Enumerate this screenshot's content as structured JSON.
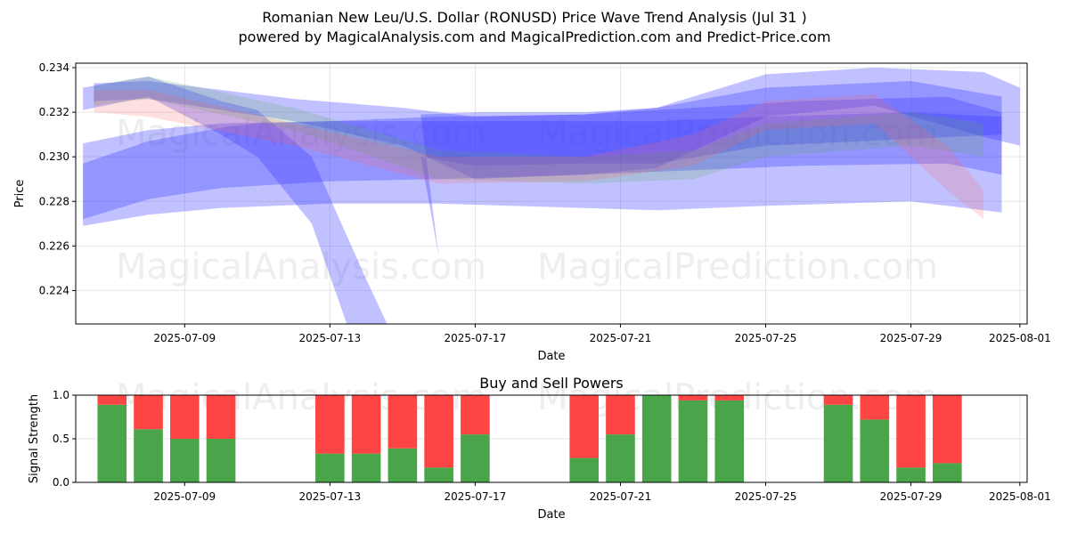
{
  "title_line1": "Romanian New Leu/U.S. Dollar (RONUSD) Price Wave Trend Analysis (Jul 31 )",
  "title_line2": "powered by MagicalAnalysis.com and MagicalPrediction.com and Predict-Price.com",
  "watermarks": [
    "MagicalAnalysis.com",
    "MagicalPrediction.com"
  ],
  "colors": {
    "blue_band": "#3333ff",
    "green_band": "#55aa55",
    "red_band": "#ff6666",
    "buy": "#4aa54a",
    "sell": "#ff4444"
  },
  "chart_data": [
    {
      "type": "area",
      "name": "price-wave-chart",
      "xlabel": "Date",
      "ylabel": "Price",
      "x_ticks": [
        "2025-07-09",
        "2025-07-13",
        "2025-07-17",
        "2025-07-21",
        "2025-07-25",
        "2025-07-29",
        "2025-08-01"
      ],
      "y_ticks": [
        0.224,
        0.226,
        0.228,
        0.23,
        0.232,
        0.234
      ],
      "xlim": [
        "2025-07-06",
        "2025-08-01"
      ],
      "ylim": [
        0.2225,
        0.2342
      ],
      "grid": true,
      "bands": [
        {
          "color": "blue",
          "opacity": 0.3,
          "points": [
            [
              "2025-07-06.2",
              0.2297,
              0.2272
            ],
            [
              "2025-07-08",
              0.2307,
              0.2281
            ],
            [
              "2025-07-10",
              0.2313,
              0.2286
            ],
            [
              "2025-07-11",
              0.2315,
              0.2287
            ],
            [
              "2025-07-13",
              0.2316,
              0.2289
            ],
            [
              "2025-07-16",
              0.2318,
              0.229
            ],
            [
              "2025-07-20",
              0.2319,
              0.2292
            ],
            [
              "2025-07-23",
              0.2322,
              0.2294
            ],
            [
              "2025-07-26",
              0.2325,
              0.2296
            ],
            [
              "2025-07-30",
              0.2327,
              0.2297
            ],
            [
              "2025-07-31.5",
              0.232,
              0.2292
            ]
          ]
        },
        {
          "color": "blue",
          "opacity": 0.3,
          "points": [
            [
              "2025-07-06.2",
              0.2306,
              0.2269
            ],
            [
              "2025-07-08",
              0.2312,
              0.2274
            ],
            [
              "2025-07-10",
              0.2315,
              0.2277
            ],
            [
              "2025-07-13",
              0.2316,
              0.2279
            ],
            [
              "2025-07-16",
              0.2316,
              0.2279
            ],
            [
              "2025-07-20",
              0.2316,
              0.2277
            ],
            [
              "2025-07-22",
              0.2316,
              0.2276
            ],
            [
              "2025-07-25",
              0.2318,
              0.2278
            ],
            [
              "2025-07-29",
              0.232,
              0.228
            ],
            [
              "2025-07-31.5",
              0.2318,
              0.2275
            ]
          ]
        },
        {
          "color": "blue",
          "opacity": 0.3,
          "points": [
            [
              "2025-07-06.2",
              0.2331,
              0.2321
            ],
            [
              "2025-07-08",
              0.2336,
              0.2327
            ],
            [
              "2025-07-10",
              0.2325,
              0.231
            ],
            [
              "2025-07-11",
              0.2321,
              0.23
            ],
            [
              "2025-07-12.5",
              0.23,
              0.227
            ],
            [
              "2025-07-14",
              0.2245,
              0.22
            ],
            [
              "2025-07-15.3",
              0.22,
              0.22
            ],
            [
              "2025-07-16",
              0.2255,
              0.2255
            ],
            [
              "2025-07-15.5",
              0.2319,
              0.23
            ],
            [
              "2025-07-17",
              0.232,
              0.2296
            ],
            [
              "2025-07-20",
              0.232,
              0.2297
            ],
            [
              "2025-07-22",
              0.2322,
              0.2297
            ],
            [
              "2025-07-25",
              0.2331,
              0.2305
            ],
            [
              "2025-07-29",
              0.2334,
              0.2308
            ],
            [
              "2025-07-31.5",
              0.2327,
              0.231
            ]
          ]
        },
        {
          "color": "blue",
          "opacity": 0.3,
          "points": [
            [
              "2025-07-06.5",
              0.2333,
              0.2325
            ],
            [
              "2025-07-08",
              0.2334,
              0.2326
            ],
            [
              "2025-07-12",
              0.2326,
              0.2316
            ],
            [
              "2025-07-15",
              0.2322,
              0.2305
            ],
            [
              "2025-07-17",
              0.2318,
              0.229
            ],
            [
              "2025-07-20",
              0.2319,
              0.2292
            ],
            [
              "2025-07-22",
              0.2322,
              0.2295
            ],
            [
              "2025-07-25",
              0.2337,
              0.2318
            ],
            [
              "2025-07-28",
              0.234,
              0.2323
            ],
            [
              "2025-07-31",
              0.2338,
              0.2309
            ],
            [
              "2025-08-01",
              0.2331,
              0.2305
            ]
          ]
        },
        {
          "color": "green",
          "opacity": 0.2,
          "points": [
            [
              "2025-07-06.5",
              0.2332,
              0.2323
            ],
            [
              "2025-07-08",
              0.2336,
              0.2326
            ],
            [
              "2025-07-12",
              0.2322,
              0.2312
            ],
            [
              "2025-07-16",
              0.2303,
              0.229
            ],
            [
              "2025-07-20",
              0.23,
              0.2288
            ],
            [
              "2025-07-23",
              0.2303,
              0.229
            ],
            [
              "2025-07-25",
              0.2315,
              0.23
            ],
            [
              "2025-07-29",
              0.232,
              0.2305
            ],
            [
              "2025-07-31",
              0.2315,
              0.23
            ]
          ]
        },
        {
          "color": "red",
          "opacity": 0.2,
          "points": [
            [
              "2025-07-06.5",
              0.233,
              0.232
            ],
            [
              "2025-07-08",
              0.233,
              0.2318
            ],
            [
              "2025-07-12",
              0.2315,
              0.2305
            ],
            [
              "2025-07-16",
              0.23,
              0.2288
            ],
            [
              "2025-07-20",
              0.23,
              0.2289
            ],
            [
              "2025-07-23",
              0.231,
              0.2296
            ],
            [
              "2025-07-25",
              0.2325,
              0.2312
            ],
            [
              "2025-07-28",
              0.2328,
              0.2315
            ],
            [
              "2025-07-30",
              0.2305,
              0.2285
            ],
            [
              "2025-07-31",
              0.2285,
              0.2272
            ]
          ]
        }
      ]
    },
    {
      "type": "bar",
      "name": "buy-sell-powers",
      "title": "Buy and Sell Powers",
      "xlabel": "Date",
      "ylabel": "Signal Strength",
      "x_ticks": [
        "2025-07-09",
        "2025-07-13",
        "2025-07-17",
        "2025-07-21",
        "2025-07-25",
        "2025-07-29",
        "2025-08-01"
      ],
      "y_ticks": [
        0.0,
        0.5,
        1.0
      ],
      "xlim": [
        "2025-07-06",
        "2025-08-01"
      ],
      "ylim": [
        0,
        1
      ],
      "categories": [
        "2025-07-07",
        "2025-07-08",
        "2025-07-09",
        "2025-07-10",
        "2025-07-13",
        "2025-07-14",
        "2025-07-15",
        "2025-07-16",
        "2025-07-17",
        "2025-07-20",
        "2025-07-21",
        "2025-07-22",
        "2025-07-23",
        "2025-07-24",
        "2025-07-27",
        "2025-07-28",
        "2025-07-29",
        "2025-07-30"
      ],
      "series": [
        {
          "name": "buy",
          "values": [
            0.89,
            0.61,
            0.5,
            0.5,
            0.33,
            0.33,
            0.39,
            0.17,
            0.55,
            0.28,
            0.55,
            1.0,
            0.94,
            0.94,
            0.89,
            0.72,
            0.17,
            0.22
          ]
        },
        {
          "name": "sell",
          "values": [
            0.11,
            0.39,
            0.5,
            0.5,
            0.67,
            0.67,
            0.61,
            0.83,
            0.45,
            0.72,
            0.45,
            0.0,
            0.06,
            0.06,
            0.11,
            0.28,
            0.83,
            0.78
          ]
        }
      ]
    }
  ]
}
